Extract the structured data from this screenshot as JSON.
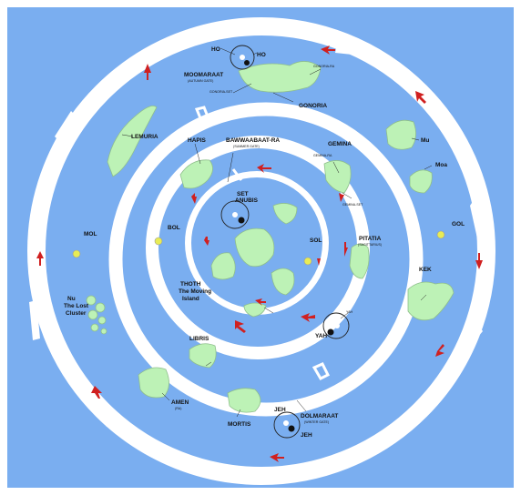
{
  "colors": {
    "ocean": "#7aaef0",
    "ice": "#ffffff",
    "land": "#bdf2b6",
    "land_edge": "#8fbf8c",
    "sun": "#e8ec55",
    "arrow": "#d02020",
    "frame": "#ffffff"
  },
  "labels": {
    "ho_left": "HO",
    "ho_right": "HO",
    "moomaraat": "MOOMARAAT",
    "moomaraat_sub": "(AUTUMN GATE)",
    "gonoria_ra": "GONORIA-RA",
    "gonoria_set": "GONORIA-SET",
    "gonoria": "GONORIA",
    "lemuria": "LEMURIA",
    "hapis": "HAPIS",
    "bawwaabaat": "BAWWAABAAT-RA",
    "bawwaabaat_sub": "(SUMMER GATE)",
    "gemina": "GEMINA",
    "gemina_ra": "GEMINA-RA",
    "gemina_set": "GEMINA-SET",
    "mu": "Mu",
    "moa": "Moa",
    "set": "SET",
    "anubis": "ANUBIS",
    "bol": "BOL",
    "sol": "SOL",
    "mol": "MOL",
    "gol": "GOL",
    "pitatia": "PITATIA",
    "pitatia_sub": "(SAGITTARIUS)",
    "kek": "KEK",
    "nu_line1": "Nu",
    "nu_line2": "The Lost",
    "nu_line3": "Cluster",
    "thoth_line1": "THOTH",
    "thoth_line2": "The Moving",
    "thoth_line3": "Island",
    "yah_small": "YAH",
    "yah": "YAH",
    "libris": "LIBRIS",
    "amen": "AMEN",
    "amen_sub": "(RA)",
    "mortis": "MORTIS",
    "jeh_left": "JEH",
    "dolmaraat": "DOLMARAAT",
    "dolmaraat_sub": "(WINTER GATE)",
    "jeh_right": "JEH"
  }
}
